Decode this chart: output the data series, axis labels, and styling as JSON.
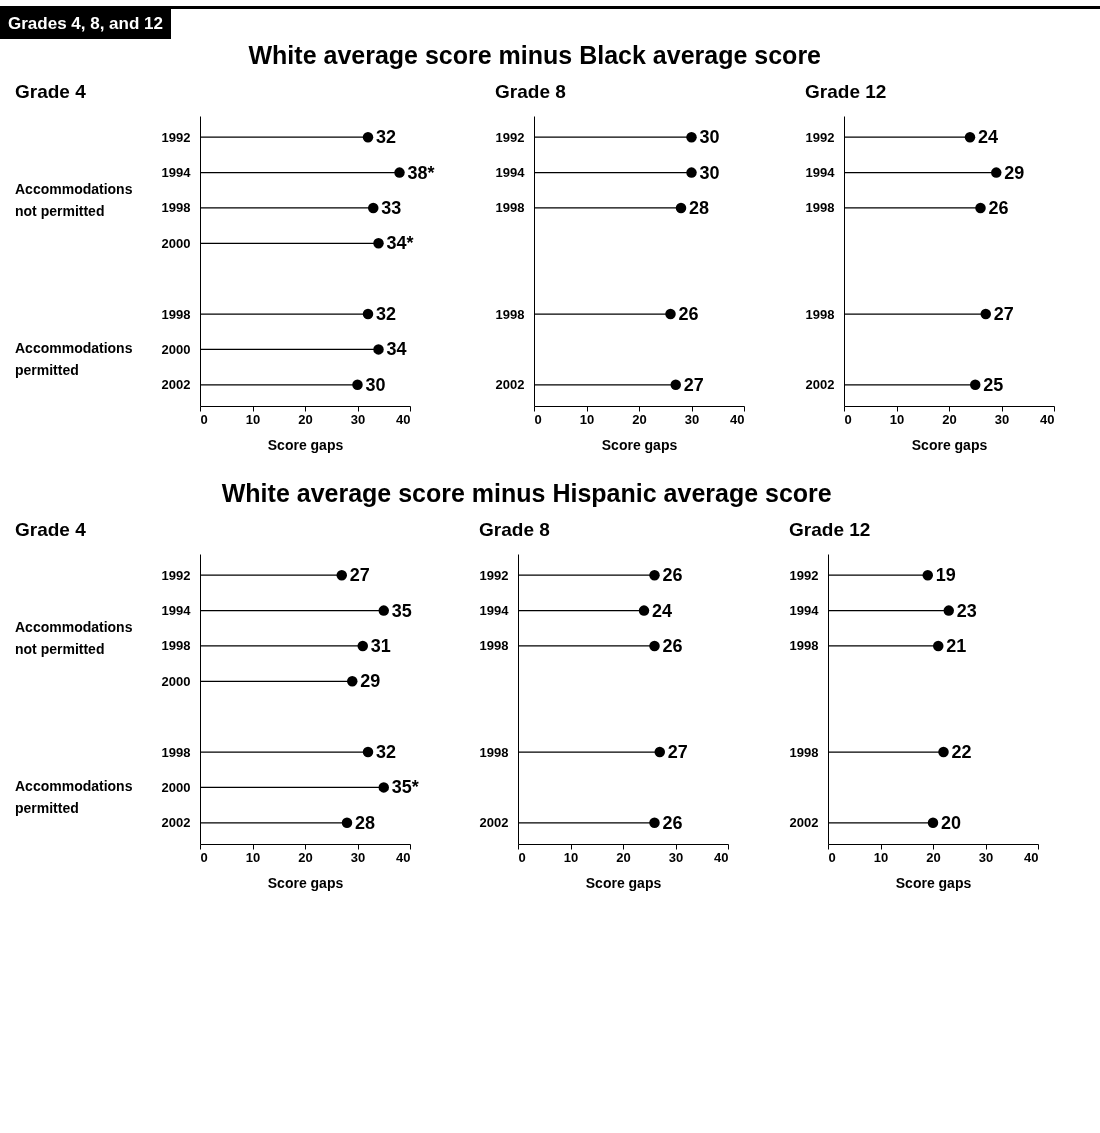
{
  "chart_data": [
    {
      "type": "lollipop",
      "orientation": "horizontal",
      "title": "Grade 4",
      "subtitle": "White average score minus Black average score",
      "xlabel": "Score gaps",
      "annotations": [
        "Grades 4, 8, and 12",
        "Accommodations not permitted",
        "Accommodations permitted"
      ],
      "categories": [
        "1992",
        "1994",
        "1998",
        "2000",
        null,
        "1998",
        "2000",
        "2002"
      ],
      "values": [
        32,
        38,
        33,
        34,
        null,
        32,
        34,
        30
      ],
      "value_labels": [
        "32",
        "38*",
        "33",
        "34*",
        null,
        "32",
        "34",
        "30"
      ],
      "color": "#000000",
      "xlim": [
        0,
        40
      ],
      "xticks": [
        0,
        10,
        20,
        30,
        40
      ],
      "grid": false
    },
    {
      "type": "lollipop",
      "orientation": "horizontal",
      "title": "Grade 8",
      "xlabel": "Score gaps",
      "categories": [
        "1992",
        "1994",
        "1998",
        null,
        null,
        "1998",
        null,
        "2002"
      ],
      "values": [
        30,
        30,
        28,
        null,
        null,
        26,
        null,
        27
      ],
      "value_labels": [
        "30",
        "30",
        "28",
        null,
        null,
        "26",
        null,
        "27"
      ],
      "color": "#000000",
      "xlim": [
        0,
        40
      ],
      "xticks": [
        0,
        10,
        20,
        30,
        40
      ],
      "grid": false
    },
    {
      "type": "lollipop",
      "orientation": "horizontal",
      "title": "Grade 12",
      "xlabel": "Score gaps",
      "categories": [
        "1992",
        "1994",
        "1998",
        null,
        null,
        "1998",
        null,
        "2002"
      ],
      "values": [
        24,
        29,
        26,
        null,
        null,
        27,
        null,
        25
      ],
      "value_labels": [
        "24",
        "29",
        "26",
        null,
        null,
        "27",
        null,
        "25"
      ],
      "color": "#000000",
      "xlim": [
        0,
        40
      ],
      "xticks": [
        0,
        10,
        20,
        30,
        40
      ],
      "grid": false
    },
    {
      "type": "lollipop",
      "orientation": "horizontal",
      "title": "Grade 4",
      "subtitle": "White average score minus Hispanic average score",
      "xlabel": "Score gaps",
      "annotations": [
        "Accommodations not permitted",
        "Accommodations permitted"
      ],
      "categories": [
        "1992",
        "1994",
        "1998",
        "2000",
        null,
        "1998",
        "2000",
        "2002"
      ],
      "values": [
        27,
        35,
        31,
        29,
        null,
        32,
        35,
        28
      ],
      "value_labels": [
        "27",
        "35",
        "31",
        "29",
        null,
        "32",
        "35*",
        "28"
      ],
      "color": "#000000",
      "xlim": [
        0,
        40
      ],
      "xticks": [
        0,
        10,
        20,
        30,
        40
      ],
      "grid": false
    },
    {
      "type": "lollipop",
      "orientation": "horizontal",
      "title": "Grade 8",
      "xlabel": "Score gaps",
      "categories": [
        "1992",
        "1994",
        "1998",
        null,
        null,
        "1998",
        null,
        "2002"
      ],
      "values": [
        26,
        24,
        26,
        null,
        null,
        27,
        null,
        26
      ],
      "value_labels": [
        "26",
        "24",
        "26",
        null,
        null,
        "27",
        null,
        "26"
      ],
      "color": "#000000",
      "xlim": [
        0,
        40
      ],
      "xticks": [
        0,
        10,
        20,
        30,
        40
      ],
      "grid": false
    },
    {
      "type": "lollipop",
      "orientation": "horizontal",
      "title": "Grade 12",
      "xlabel": "Score gaps",
      "categories": [
        "1992",
        "1994",
        "1998",
        null,
        null,
        "1998",
        null,
        "2002"
      ],
      "values": [
        19,
        23,
        21,
        null,
        null,
        22,
        null,
        20
      ],
      "value_labels": [
        "19",
        "23",
        "21",
        null,
        null,
        "22",
        null,
        "20"
      ],
      "color": "#000000",
      "xlim": [
        0,
        40
      ],
      "xticks": [
        0,
        10,
        20,
        30,
        40
      ],
      "grid": false
    }
  ]
}
